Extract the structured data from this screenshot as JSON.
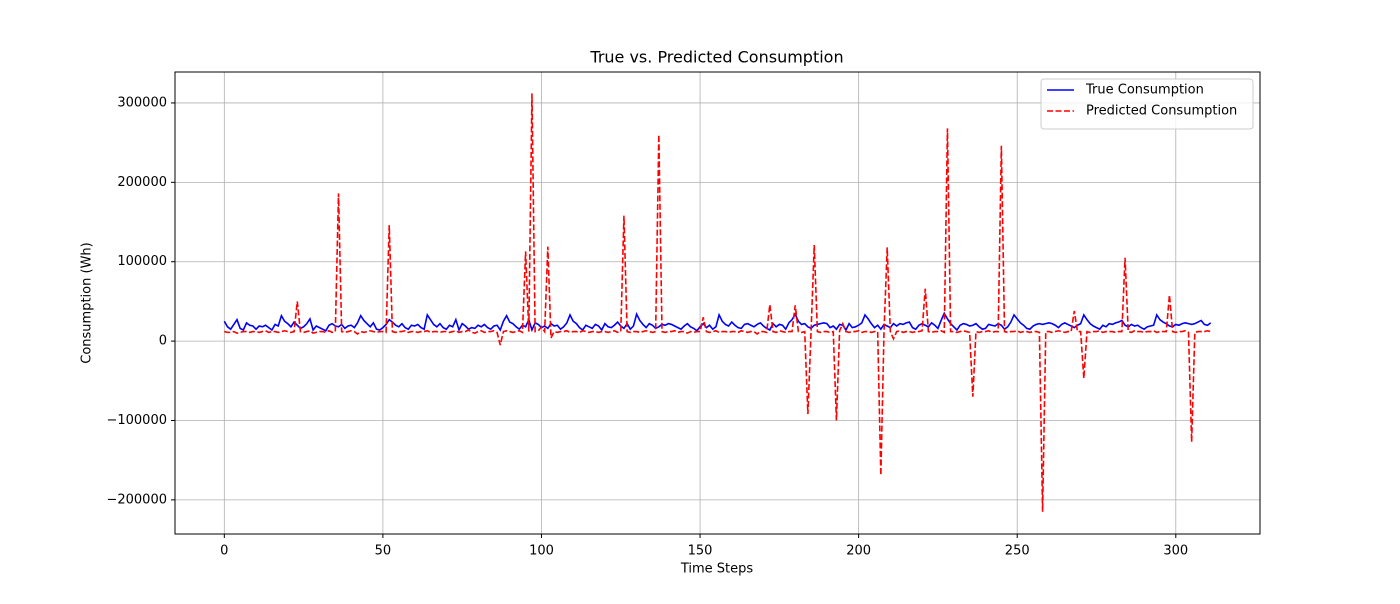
{
  "chart_data": {
    "type": "line",
    "title": "True vs. Predicted Consumption",
    "x_label": "Time Steps",
    "y_label": "Consumption (Wh)",
    "grid": true,
    "legend": "upper right",
    "xlim": [
      -15.55,
      326.55
    ],
    "xticks": [
      0,
      50,
      100,
      150,
      200,
      250,
      300
    ],
    "ylim": [
      -243000,
      339000
    ],
    "yticks": [
      {
        "value": -200000,
        "label": "−200000"
      },
      {
        "value": -100000,
        "label": "−100000"
      },
      0,
      100000,
      200000,
      300000
    ],
    "x": [
      0,
      1,
      2,
      3,
      4,
      5,
      6,
      7,
      8,
      9,
      10,
      11,
      12,
      13,
      14,
      15,
      16,
      17,
      18,
      19,
      20,
      21,
      22,
      23,
      24,
      25,
      26,
      27,
      28,
      29,
      30,
      31,
      32,
      33,
      34,
      35,
      36,
      37,
      38,
      39,
      40,
      41,
      42,
      43,
      44,
      45,
      46,
      47,
      48,
      49,
      50,
      51,
      52,
      53,
      54,
      55,
      56,
      57,
      58,
      59,
      60,
      61,
      62,
      63,
      64,
      65,
      66,
      67,
      68,
      69,
      70,
      71,
      72,
      73,
      74,
      75,
      76,
      77,
      78,
      79,
      80,
      81,
      82,
      83,
      84,
      85,
      86,
      87,
      88,
      89,
      90,
      91,
      92,
      93,
      94,
      95,
      96,
      97,
      98,
      99,
      100,
      101,
      102,
      103,
      104,
      105,
      106,
      107,
      108,
      109,
      110,
      111,
      112,
      113,
      114,
      115,
      116,
      117,
      118,
      119,
      120,
      121,
      122,
      123,
      124,
      125,
      126,
      127,
      128,
      129,
      130,
      131,
      132,
      133,
      134,
      135,
      136,
      137,
      138,
      139,
      140,
      141,
      142,
      143,
      144,
      145,
      146,
      147,
      148,
      149,
      150,
      151,
      152,
      153,
      154,
      155,
      156,
      157,
      158,
      159,
      160,
      161,
      162,
      163,
      164,
      165,
      166,
      167,
      168,
      169,
      170,
      171,
      172,
      173,
      174,
      175,
      176,
      177,
      178,
      179,
      180,
      181,
      182,
      183,
      184,
      185,
      186,
      187,
      188,
      189,
      190,
      191,
      192,
      193,
      194,
      195,
      196,
      197,
      198,
      199,
      200,
      201,
      202,
      203,
      204,
      205,
      206,
      207,
      208,
      209,
      210,
      211,
      212,
      213,
      214,
      215,
      216,
      217,
      218,
      219,
      220,
      221,
      222,
      223,
      224,
      225,
      226,
      227,
      228,
      229,
      230,
      231,
      232,
      233,
      234,
      235,
      236,
      237,
      238,
      239,
      240,
      241,
      242,
      243,
      244,
      245,
      246,
      247,
      248,
      249,
      250,
      251,
      252,
      253,
      254,
      255,
      256,
      257,
      258,
      259,
      260,
      261,
      262,
      263,
      264,
      265,
      266,
      267,
      268,
      269,
      270,
      271,
      272,
      273,
      274,
      275,
      276,
      277,
      278,
      279,
      280,
      281,
      282,
      283,
      284,
      285,
      286,
      287,
      288,
      289,
      290,
      291,
      292,
      293,
      294,
      295,
      296,
      297,
      298,
      299,
      300,
      301,
      302,
      303,
      304,
      305,
      306,
      307,
      308,
      309,
      310,
      311
    ],
    "series": [
      {
        "name": "True Consumption",
        "color": "#0000ff",
        "linestyle": "solid",
        "values": [
          25000,
          18000,
          15000,
          21000,
          27000,
          16000,
          14000,
          23000,
          20000,
          19000,
          15000,
          19000,
          18000,
          20000,
          17000,
          14000,
          21000,
          19000,
          32000,
          25000,
          22000,
          18000,
          24000,
          20000,
          16000,
          18000,
          22000,
          28000,
          14000,
          19000,
          17000,
          15000,
          13000,
          20000,
          22000,
          19000,
          18000,
          21000,
          16000,
          19000,
          20000,
          17000,
          23000,
          32000,
          26000,
          22000,
          18000,
          23000,
          15000,
          14000,
          17000,
          21000,
          27000,
          24000,
          20000,
          18000,
          22000,
          17000,
          15000,
          20000,
          19000,
          21000,
          17000,
          15000,
          33000,
          27000,
          21000,
          18000,
          22000,
          17000,
          15000,
          20000,
          18000,
          27000,
          14000,
          22000,
          19000,
          15000,
          17000,
          16000,
          20000,
          18000,
          21000,
          17000,
          15000,
          19000,
          20000,
          14000,
          25000,
          32000,
          24000,
          22000,
          18000,
          15000,
          20000,
          18000,
          27000,
          14000,
          23000,
          21000,
          17000,
          19000,
          16000,
          22000,
          19000,
          20000,
          15000,
          18000,
          23000,
          33000,
          25000,
          22000,
          17000,
          14000,
          20000,
          18000,
          16000,
          21000,
          19000,
          14000,
          22000,
          18000,
          17000,
          20000,
          24000,
          19000,
          16000,
          22000,
          15000,
          19000,
          34000,
          26000,
          21000,
          17000,
          22000,
          20000,
          16000,
          18000,
          21000,
          20000,
          22000,
          21000,
          19000,
          17000,
          15000,
          19000,
          22000,
          18000,
          16000,
          13000,
          18000,
          22000,
          17000,
          20000,
          15000,
          18000,
          33000,
          25000,
          21000,
          19000,
          24000,
          20000,
          17000,
          16000,
          21000,
          22000,
          20000,
          18000,
          21000,
          23000,
          19000,
          16000,
          14000,
          22000,
          18000,
          21000,
          20000,
          15000,
          23000,
          27000,
          34000,
          25000,
          21000,
          22000,
          18000,
          16000,
          20000,
          21000,
          22000,
          23000,
          22000,
          17000,
          19000,
          15000,
          21000,
          20000,
          14000,
          22000,
          17000,
          18000,
          20000,
          23000,
          33000,
          28000,
          22000,
          17000,
          20000,
          15000,
          21000,
          19000,
          17000,
          22000,
          19000,
          22000,
          21000,
          23000,
          24000,
          17000,
          15000,
          20000,
          22000,
          20000,
          18000,
          23000,
          20000,
          16000,
          26000,
          35000,
          28000,
          22000,
          18000,
          14000,
          20000,
          22000,
          21000,
          19000,
          20000,
          22000,
          18000,
          15000,
          16000,
          21000,
          20000,
          19000,
          22000,
          20000,
          15000,
          18000,
          24000,
          33000,
          28000,
          23000,
          20000,
          16000,
          15000,
          19000,
          21000,
          22000,
          21000,
          22000,
          23000,
          22000,
          20000,
          17000,
          21000,
          23000,
          21000,
          19000,
          17000,
          20000,
          22000,
          33000,
          27000,
          22000,
          19000,
          17000,
          15000,
          20000,
          18000,
          22000,
          21000,
          23000,
          24000,
          26000,
          20000,
          18000,
          21000,
          19000,
          20000,
          17000,
          15000,
          18000,
          19000,
          20000,
          33000,
          27000,
          24000,
          22000,
          19000,
          18000,
          21000,
          20000,
          22000,
          23000,
          22000,
          21000,
          22000,
          24000,
          26000,
          21000,
          20000,
          23000
        ]
      },
      {
        "name": "Predicted Consumption",
        "color": "#ff0000",
        "linestyle": "dashed",
        "values": [
          12000,
          11000,
          11000,
          12000,
          10000,
          11000,
          12000,
          12000,
          11000,
          12000,
          12000,
          11000,
          12000,
          13000,
          11000,
          12000,
          12000,
          11000,
          12000,
          13000,
          12000,
          11000,
          12000,
          50000,
          12000,
          11000,
          12000,
          13000,
          10000,
          11000,
          12000,
          12000,
          11000,
          13000,
          11000,
          12000,
          186000,
          12000,
          11000,
          12000,
          13000,
          12000,
          9000,
          12000,
          11000,
          12000,
          13000,
          12000,
          11000,
          12000,
          12000,
          11000,
          146000,
          12000,
          11000,
          12000,
          12000,
          13000,
          11000,
          12000,
          12000,
          11000,
          12000,
          12000,
          13000,
          11000,
          12000,
          12000,
          11000,
          12000,
          12000,
          11000,
          12000,
          13000,
          11000,
          12000,
          12000,
          14000,
          11000,
          10000,
          12000,
          13000,
          11000,
          12000,
          12000,
          13000,
          11000,
          -5000,
          12000,
          13000,
          12000,
          11000,
          12000,
          13000,
          11000,
          113000,
          12000,
          312000,
          12000,
          13000,
          18000,
          12000,
          119000,
          4000,
          12000,
          11000,
          12000,
          12000,
          13000,
          11000,
          12000,
          12000,
          11000,
          13000,
          12000,
          11000,
          12000,
          12000,
          11000,
          12000,
          12000,
          11000,
          12000,
          13000,
          11000,
          12000,
          158000,
          12000,
          11000,
          12000,
          12000,
          11000,
          12000,
          13000,
          12000,
          11000,
          12000,
          260000,
          12000,
          11000,
          12000,
          12000,
          13000,
          11000,
          12000,
          12000,
          10000,
          12000,
          11000,
          12000,
          12000,
          30000,
          12000,
          11000,
          12000,
          13000,
          11000,
          12000,
          12000,
          11000,
          12000,
          12000,
          11000,
          13000,
          12000,
          11000,
          12000,
          12000,
          9000,
          12000,
          12000,
          11000,
          46000,
          12000,
          11000,
          13000,
          12000,
          11000,
          12000,
          12000,
          45000,
          12000,
          11000,
          12000,
          -92000,
          12000,
          121000,
          12000,
          11000,
          12000,
          12000,
          11000,
          12000,
          -100000,
          13000,
          22000,
          12000,
          11000,
          12000,
          12000,
          13000,
          11000,
          12000,
          12000,
          11000,
          12000,
          12000,
          -169000,
          12000,
          118000,
          12000,
          3000,
          12000,
          13000,
          11000,
          12000,
          12000,
          11000,
          12000,
          12000,
          13000,
          66000,
          12000,
          11000,
          12000,
          12000,
          13000,
          11000,
          268000,
          12000,
          12000,
          11000,
          12000,
          13000,
          12000,
          11000,
          -70000,
          12000,
          11000,
          12000,
          12000,
          13000,
          11000,
          12000,
          12000,
          246000,
          12000,
          11000,
          12000,
          12000,
          13000,
          11000,
          12000,
          12000,
          11000,
          12000,
          12000,
          11000,
          -215000,
          12000,
          12000,
          11000,
          12000,
          13000,
          12000,
          11000,
          12000,
          12000,
          38000,
          12000,
          12000,
          -47000,
          12000,
          11000,
          12000,
          12000,
          13000,
          11000,
          12000,
          12000,
          12000,
          11000,
          12000,
          12000,
          105000,
          12000,
          11000,
          13000,
          12000,
          12000,
          11000,
          12000,
          12000,
          13000,
          11000,
          12000,
          12000,
          12000,
          58000,
          12000,
          11000,
          12000,
          12000,
          13000,
          11000,
          -127000,
          11000,
          12000,
          12000,
          12000,
          13000,
          12000
        ]
      }
    ]
  }
}
